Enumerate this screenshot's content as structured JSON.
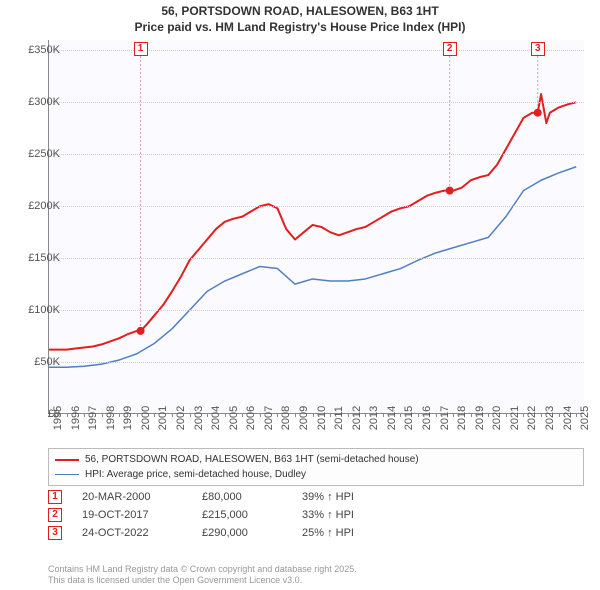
{
  "title": {
    "line1": "56, PORTSDOWN ROAD, HALESOWEN, B63 1HT",
    "line2": "Price paid vs. HM Land Registry's House Price Index (HPI)"
  },
  "chart": {
    "type": "line",
    "background_color": "#fafaff",
    "grid_color": "#d0d0d0",
    "xlim": [
      1995,
      2025.5
    ],
    "ylim": [
      0,
      360000
    ],
    "ytick_step": 50000,
    "ytick_labels": [
      "£0",
      "£50K",
      "£100K",
      "£150K",
      "£200K",
      "£250K",
      "£300K",
      "£350K"
    ],
    "xticks": [
      1995,
      1996,
      1997,
      1998,
      1999,
      2000,
      2001,
      2002,
      2003,
      2004,
      2005,
      2006,
      2007,
      2008,
      2009,
      2010,
      2011,
      2012,
      2013,
      2014,
      2015,
      2016,
      2017,
      2018,
      2019,
      2020,
      2021,
      2022,
      2023,
      2024,
      2025
    ],
    "series": [
      {
        "name": "56, PORTSDOWN ROAD, HALESOWEN, B63 1HT (semi-detached house)",
        "color": "#e02020",
        "line_width": 2,
        "data": [
          [
            1995,
            62000
          ],
          [
            1995.5,
            62000
          ],
          [
            1996,
            62000
          ],
          [
            1996.5,
            63000
          ],
          [
            1997,
            64000
          ],
          [
            1997.5,
            65000
          ],
          [
            1998,
            67000
          ],
          [
            1998.5,
            70000
          ],
          [
            1999,
            73000
          ],
          [
            1999.5,
            77000
          ],
          [
            2000,
            80000
          ],
          [
            2000.21,
            80000
          ],
          [
            2000.5,
            85000
          ],
          [
            2001,
            95000
          ],
          [
            2001.5,
            105000
          ],
          [
            2002,
            118000
          ],
          [
            2002.5,
            132000
          ],
          [
            2003,
            148000
          ],
          [
            2003.5,
            158000
          ],
          [
            2004,
            168000
          ],
          [
            2004.5,
            178000
          ],
          [
            2005,
            185000
          ],
          [
            2005.5,
            188000
          ],
          [
            2006,
            190000
          ],
          [
            2006.5,
            195000
          ],
          [
            2007,
            200000
          ],
          [
            2007.5,
            202000
          ],
          [
            2008,
            198000
          ],
          [
            2008.5,
            178000
          ],
          [
            2009,
            168000
          ],
          [
            2009.5,
            175000
          ],
          [
            2010,
            182000
          ],
          [
            2010.5,
            180000
          ],
          [
            2011,
            175000
          ],
          [
            2011.5,
            172000
          ],
          [
            2012,
            175000
          ],
          [
            2012.5,
            178000
          ],
          [
            2013,
            180000
          ],
          [
            2013.5,
            185000
          ],
          [
            2014,
            190000
          ],
          [
            2014.5,
            195000
          ],
          [
            2015,
            198000
          ],
          [
            2015.5,
            200000
          ],
          [
            2016,
            205000
          ],
          [
            2016.5,
            210000
          ],
          [
            2017,
            213000
          ],
          [
            2017.5,
            215000
          ],
          [
            2017.8,
            215000
          ],
          [
            2018,
            215000
          ],
          [
            2018.5,
            218000
          ],
          [
            2019,
            225000
          ],
          [
            2019.5,
            228000
          ],
          [
            2020,
            230000
          ],
          [
            2020.5,
            240000
          ],
          [
            2021,
            255000
          ],
          [
            2021.5,
            270000
          ],
          [
            2022,
            285000
          ],
          [
            2022.5,
            290000
          ],
          [
            2022.81,
            290000
          ],
          [
            2023,
            308000
          ],
          [
            2023.3,
            280000
          ],
          [
            2023.5,
            290000
          ],
          [
            2024,
            295000
          ],
          [
            2024.5,
            298000
          ],
          [
            2025,
            300000
          ]
        ]
      },
      {
        "name": "HPI: Average price, semi-detached house, Dudley",
        "color": "#5080c0",
        "line_width": 1.5,
        "data": [
          [
            1995,
            45000
          ],
          [
            1996,
            45000
          ],
          [
            1997,
            46000
          ],
          [
            1998,
            48000
          ],
          [
            1999,
            52000
          ],
          [
            2000,
            58000
          ],
          [
            2001,
            68000
          ],
          [
            2002,
            82000
          ],
          [
            2003,
            100000
          ],
          [
            2004,
            118000
          ],
          [
            2005,
            128000
          ],
          [
            2006,
            135000
          ],
          [
            2007,
            142000
          ],
          [
            2008,
            140000
          ],
          [
            2009,
            125000
          ],
          [
            2010,
            130000
          ],
          [
            2011,
            128000
          ],
          [
            2012,
            128000
          ],
          [
            2013,
            130000
          ],
          [
            2014,
            135000
          ],
          [
            2015,
            140000
          ],
          [
            2016,
            148000
          ],
          [
            2017,
            155000
          ],
          [
            2018,
            160000
          ],
          [
            2019,
            165000
          ],
          [
            2020,
            170000
          ],
          [
            2021,
            190000
          ],
          [
            2022,
            215000
          ],
          [
            2023,
            225000
          ],
          [
            2024,
            232000
          ],
          [
            2025,
            238000
          ]
        ]
      }
    ],
    "markers": [
      {
        "n": "1",
        "x": 2000.21,
        "y": 80000
      },
      {
        "n": "2",
        "x": 2017.8,
        "y": 215000
      },
      {
        "n": "3",
        "x": 2022.81,
        "y": 290000
      }
    ]
  },
  "legend": {
    "rows": [
      {
        "color": "#e02020",
        "width": 2,
        "label": "56, PORTSDOWN ROAD, HALESOWEN, B63 1HT (semi-detached house)"
      },
      {
        "color": "#5080c0",
        "width": 1.5,
        "label": "HPI: Average price, semi-detached house, Dudley"
      }
    ]
  },
  "sales": [
    {
      "n": "1",
      "date": "20-MAR-2000",
      "price": "£80,000",
      "diff": "39% ↑ HPI"
    },
    {
      "n": "2",
      "date": "19-OCT-2017",
      "price": "£215,000",
      "diff": "33% ↑ HPI"
    },
    {
      "n": "3",
      "date": "24-OCT-2022",
      "price": "£290,000",
      "diff": "25% ↑ HPI"
    }
  ],
  "footer": {
    "line1": "Contains HM Land Registry data © Crown copyright and database right 2025.",
    "line2": "This data is licensed under the Open Government Licence v3.0."
  }
}
